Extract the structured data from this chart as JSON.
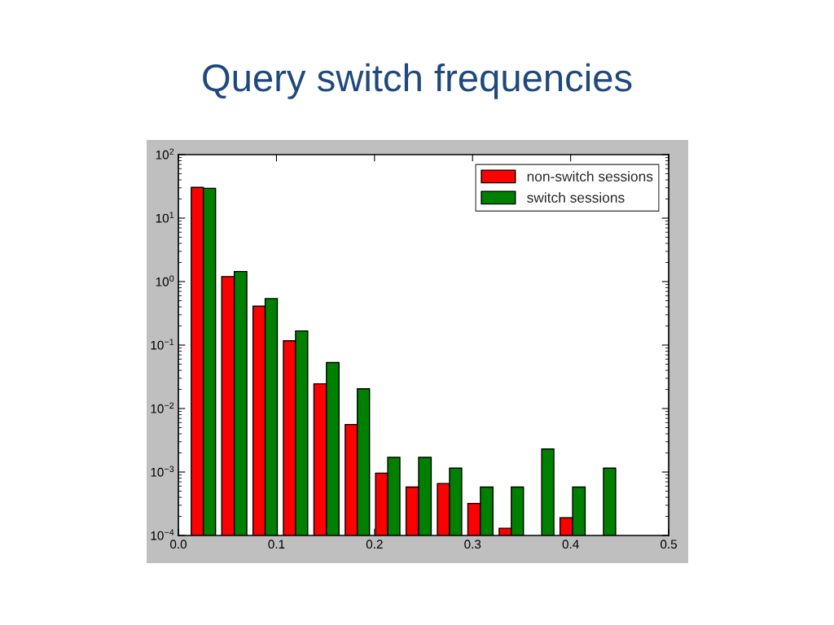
{
  "chart_data": {
    "type": "histogram",
    "title": "Query switch frequencies",
    "bins": [
      0.01,
      0.041,
      0.073,
      0.104,
      0.135,
      0.167,
      0.198,
      0.229,
      0.261,
      0.292,
      0.324,
      0.355,
      0.386,
      0.418,
      0.449
    ],
    "series": [
      {
        "name": "non-switch sessions",
        "color": "#ff0000",
        "values": [
          30.5,
          1.2,
          0.41,
          0.117,
          0.0245,
          0.0056,
          0.00096,
          0.00058,
          0.00066,
          0.00032,
          0.00013,
          null,
          0.00019,
          null
        ]
      },
      {
        "name": "switch sessions",
        "color": "#008000",
        "values": [
          29.5,
          1.44,
          0.54,
          0.167,
          0.053,
          0.0205,
          0.0017,
          0.0017,
          0.00115,
          0.00058,
          0.00058,
          0.0023,
          0.00058,
          0.00115
        ]
      }
    ],
    "log": "y",
    "xlim": [
      0,
      0.5
    ],
    "xticks": [
      {
        "value": 0,
        "label": "0.0"
      },
      0.1,
      0.2,
      0.3,
      0.4,
      0.5
    ],
    "ylim": [
      0.0001,
      100
    ],
    "yticks": [
      {
        "value": 0.0001,
        "label": "10$^{−4}$"
      },
      {
        "value": 0.001,
        "label": "10$^{−3}$"
      },
      {
        "value": 0.01,
        "label": "10$^{−2}$"
      },
      {
        "value": 0.1,
        "label": "10$^{−1}$"
      },
      {
        "value": 1,
        "label": "10$^{0}$"
      },
      {
        "value": 10,
        "label": "10$^{1}$"
      },
      {
        "value": 100,
        "label": "10$^{2}$"
      }
    ],
    "legend": "top right",
    "grid": false
  }
}
